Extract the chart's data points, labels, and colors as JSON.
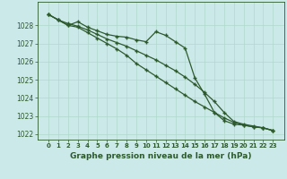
{
  "title": "Graphe pression niveau de la mer (hPa)",
  "background_color": "#cce9e9",
  "grid_color": "#b0d8cc",
  "line_color": "#2d5a2d",
  "ylim": [
    1021.7,
    1029.3
  ],
  "yticks": [
    1022,
    1023,
    1024,
    1025,
    1026,
    1027,
    1028
  ],
  "x_labels": [
    "0",
    "1",
    "2",
    "3",
    "4",
    "5",
    "6",
    "7",
    "8",
    "9",
    "10",
    "11",
    "12",
    "13",
    "14",
    "15",
    "16",
    "17",
    "18",
    "19",
    "20",
    "21",
    "22",
    "23"
  ],
  "series": [
    [
      1028.6,
      1028.3,
      1028.0,
      1028.2,
      1027.9,
      1027.7,
      1027.5,
      1027.4,
      1027.35,
      1027.2,
      1027.1,
      1027.65,
      1027.45,
      1027.1,
      1026.75,
      1025.1,
      1024.2,
      1023.2,
      1022.75,
      1022.55,
      1022.5,
      1022.4,
      1022.35,
      1022.2
    ],
    [
      1028.6,
      1028.3,
      1028.0,
      1027.9,
      1027.6,
      1027.3,
      1027.0,
      1026.7,
      1026.35,
      1025.9,
      1025.55,
      1025.2,
      1024.85,
      1024.5,
      1024.15,
      1023.8,
      1023.5,
      1023.2,
      1022.9,
      1022.65,
      1022.5,
      1022.4,
      1022.35,
      1022.2
    ],
    [
      1028.6,
      1028.3,
      1028.1,
      1027.95,
      1027.75,
      1027.5,
      1027.25,
      1027.05,
      1026.85,
      1026.6,
      1026.35,
      1026.1,
      1025.8,
      1025.5,
      1025.15,
      1024.75,
      1024.3,
      1023.8,
      1023.2,
      1022.7,
      1022.55,
      1022.45,
      1022.35,
      1022.2
    ]
  ]
}
